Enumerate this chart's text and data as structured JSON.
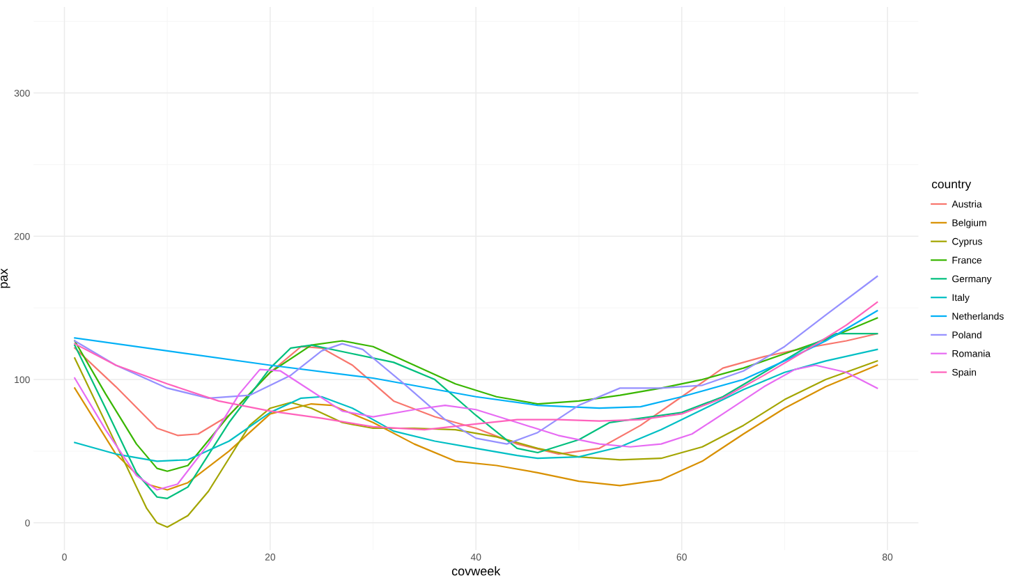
{
  "chart_data": {
    "type": "line",
    "xlabel": "covweek",
    "ylabel": "pax",
    "legend_title": "country",
    "legend": "right",
    "grid": true,
    "marker": "none",
    "line_style": "solid",
    "xlim": [
      -3,
      83
    ],
    "xticks": [
      0,
      20,
      40,
      60,
      80
    ],
    "ylim": [
      -19,
      360
    ],
    "yticks": [
      0,
      100,
      200,
      300
    ],
    "series": [
      {
        "name": "Austria",
        "color": "#f8766d",
        "x": [
          1,
          5,
          9,
          11,
          13,
          16,
          20,
          23,
          25,
          28,
          32,
          36,
          40,
          44,
          48,
          52,
          56,
          60,
          64,
          68,
          72,
          76,
          79
        ],
        "values": [
          122,
          95,
          66,
          61,
          62,
          75,
          105,
          123,
          122,
          110,
          85,
          74,
          66,
          55,
          48,
          52,
          68,
          88,
          108,
          116,
          122,
          127,
          132
        ]
      },
      {
        "name": "Belgium",
        "color": "#d89000",
        "x": [
          1,
          5,
          8,
          10,
          12,
          16,
          20,
          24,
          26,
          30,
          34,
          38,
          42,
          46,
          50,
          54,
          58,
          62,
          66,
          70,
          74,
          79
        ],
        "values": [
          94,
          48,
          27,
          23,
          28,
          50,
          76,
          83,
          82,
          70,
          55,
          43,
          40,
          35,
          29,
          26,
          30,
          43,
          62,
          80,
          95,
          110
        ]
      },
      {
        "name": "Cyprus",
        "color": "#a3a500",
        "x": [
          1,
          5,
          8,
          9,
          10,
          12,
          14,
          16,
          18,
          20,
          22,
          24,
          27,
          30,
          34,
          38,
          42,
          46,
          50,
          54,
          58,
          62,
          66,
          70,
          74,
          79
        ],
        "values": [
          115,
          55,
          10,
          0,
          -3,
          5,
          22,
          45,
          68,
          80,
          84,
          80,
          70,
          66,
          66,
          65,
          60,
          52,
          46,
          44,
          45,
          53,
          68,
          86,
          100,
          113
        ]
      },
      {
        "name": "France",
        "color": "#39b600",
        "x": [
          1,
          4,
          7,
          9,
          10,
          12,
          16,
          20,
          24,
          27,
          30,
          34,
          38,
          42,
          46,
          50,
          54,
          58,
          62,
          66,
          70,
          74,
          79
        ],
        "values": [
          127,
          90,
          55,
          38,
          36,
          40,
          75,
          105,
          124,
          127,
          123,
          110,
          97,
          88,
          83,
          85,
          89,
          94,
          100,
          108,
          118,
          128,
          143
        ]
      },
      {
        "name": "Germany",
        "color": "#00bf7d",
        "x": [
          1,
          4,
          7,
          9,
          10,
          12,
          16,
          20,
          22,
          24,
          28,
          32,
          36,
          40,
          44,
          46,
          50,
          53,
          56,
          60,
          64,
          68,
          72,
          75,
          79
        ],
        "values": [
          124,
          80,
          35,
          18,
          17,
          25,
          70,
          108,
          122,
          124,
          118,
          112,
          100,
          75,
          52,
          49,
          58,
          70,
          73,
          77,
          88,
          105,
          122,
          132,
          132
        ]
      },
      {
        "name": "Italy",
        "color": "#00bfc4",
        "x": [
          1,
          5,
          9,
          12,
          16,
          20,
          23,
          25,
          28,
          32,
          36,
          40,
          44,
          46,
          50,
          54,
          58,
          62,
          66,
          70,
          74,
          79
        ],
        "values": [
          56,
          48,
          43,
          44,
          57,
          77,
          87,
          88,
          80,
          64,
          57,
          52,
          47,
          45,
          46,
          53,
          65,
          79,
          93,
          105,
          113,
          121
        ]
      },
      {
        "name": "Netherlands",
        "color": "#00b0f6",
        "x": [
          1,
          20,
          30,
          40,
          46,
          52,
          56,
          60,
          66,
          70,
          74,
          79
        ],
        "values": [
          129,
          110,
          101,
          88,
          82,
          80,
          81,
          88,
          100,
          113,
          127,
          148
        ]
      },
      {
        "name": "Poland",
        "color": "#9590ff",
        "x": [
          1,
          5,
          10,
          14,
          18,
          22,
          25,
          27,
          29,
          33,
          37,
          40,
          43,
          46,
          50,
          54,
          58,
          62,
          66,
          70,
          74,
          79
        ],
        "values": [
          127,
          110,
          94,
          87,
          89,
          103,
          120,
          125,
          121,
          97,
          72,
          59,
          55,
          63,
          82,
          94,
          94,
          96,
          106,
          123,
          145,
          172
        ]
      },
      {
        "name": "Romania",
        "color": "#e76bf3",
        "x": [
          1,
          4,
          7,
          9,
          11,
          14,
          17,
          19,
          21,
          24,
          27,
          30,
          34,
          37,
          40,
          44,
          48,
          52,
          55,
          58,
          61,
          64,
          68,
          71,
          73,
          76,
          79
        ],
        "values": [
          101,
          65,
          33,
          23,
          27,
          55,
          90,
          107,
          106,
          92,
          78,
          74,
          79,
          82,
          79,
          70,
          61,
          55,
          53,
          55,
          62,
          76,
          95,
          107,
          110,
          105,
          94
        ]
      },
      {
        "name": "Spain",
        "color": "#ff62bc",
        "x": [
          1,
          5,
          10,
          15,
          20,
          25,
          30,
          35,
          40,
          44,
          48,
          52,
          56,
          60,
          64,
          68,
          72,
          76,
          79
        ],
        "values": [
          125,
          110,
          97,
          85,
          78,
          73,
          67,
          65,
          69,
          72,
          72,
          71,
          72,
          76,
          87,
          103,
          120,
          138,
          154
        ]
      }
    ]
  }
}
